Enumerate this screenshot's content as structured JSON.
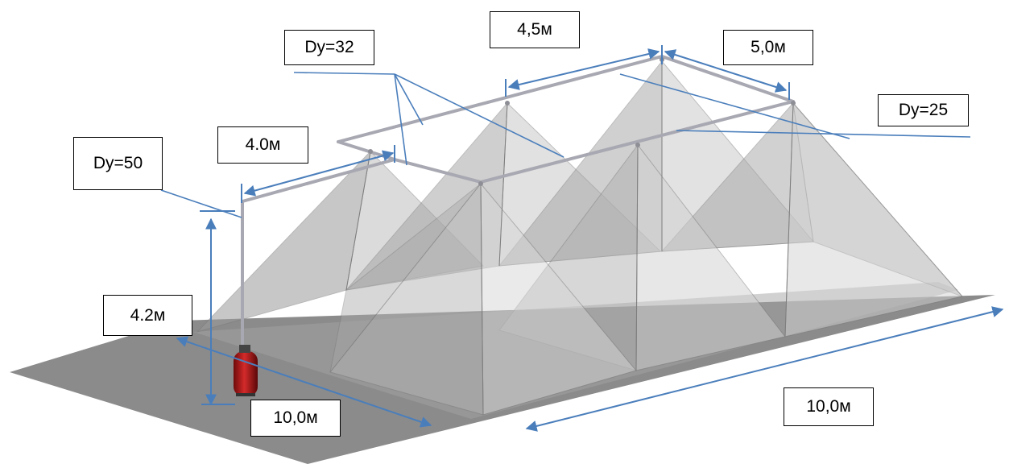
{
  "labels": {
    "dn50": "Dу=50",
    "dn32": "Dу=32",
    "dn25": "Dу=25",
    "len_4_0": "4.0м",
    "len_4_5": "4,5м",
    "len_5_0": "5,0м",
    "height_4_2": "4.2м",
    "width_10_0": "10,0м",
    "length_10_0": "10,0м"
  },
  "colors": {
    "dimension_line": "#4a7ebb",
    "floor": "#8a8a8a",
    "spray_cone": "#a9a9a9",
    "pipe": "#b4b4bc",
    "extinguisher": "#b01818"
  },
  "icons": {
    "module": "fire-extinguisher-module-icon",
    "nozzle": "sprinkler-nozzle-icon"
  }
}
